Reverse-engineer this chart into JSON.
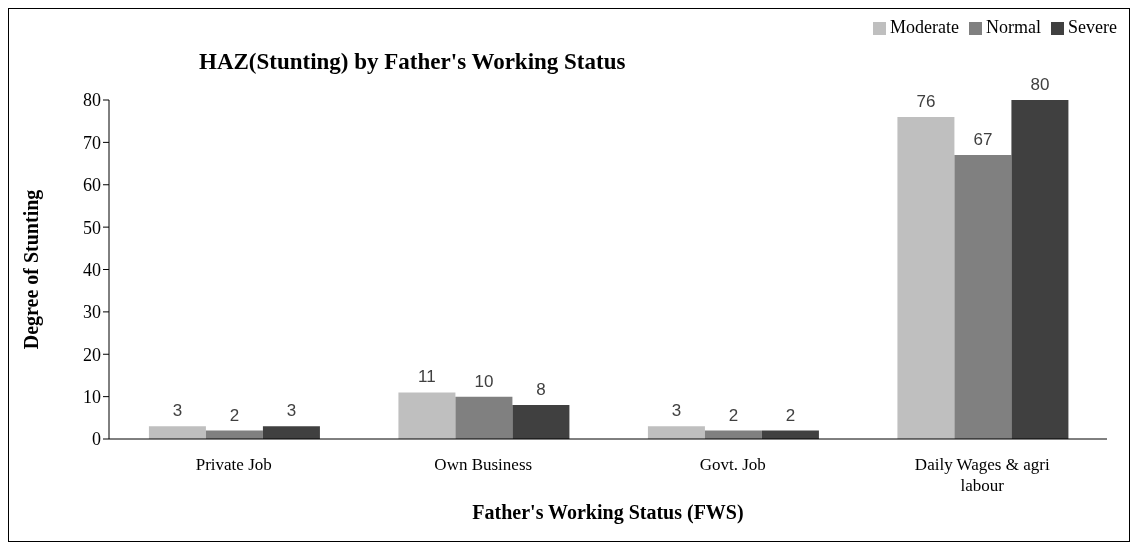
{
  "chart_data": {
    "type": "bar",
    "title": "HAZ(Stunting) by  Father's Working Status",
    "xlabel": "Father's Working Status (FWS)",
    "ylabel": "Degree of Stunting",
    "categories": [
      "Private Job",
      "Own Business",
      "Govt. Job",
      "Daily Wages & agri labour"
    ],
    "series": [
      {
        "name": "Moderate",
        "color": "#bfbfbf",
        "values": [
          3,
          11,
          3,
          76
        ]
      },
      {
        "name": "Normal",
        "color": "#808080",
        "values": [
          2,
          10,
          2,
          67
        ]
      },
      {
        "name": "Severe",
        "color": "#404040",
        "values": [
          3,
          8,
          2,
          80
        ]
      }
    ],
    "ylim": [
      0,
      80
    ],
    "yticks": [
      0,
      10,
      20,
      30,
      40,
      50,
      60,
      70,
      80
    ],
    "grid": false,
    "legend": "top right",
    "data_labels": true
  }
}
